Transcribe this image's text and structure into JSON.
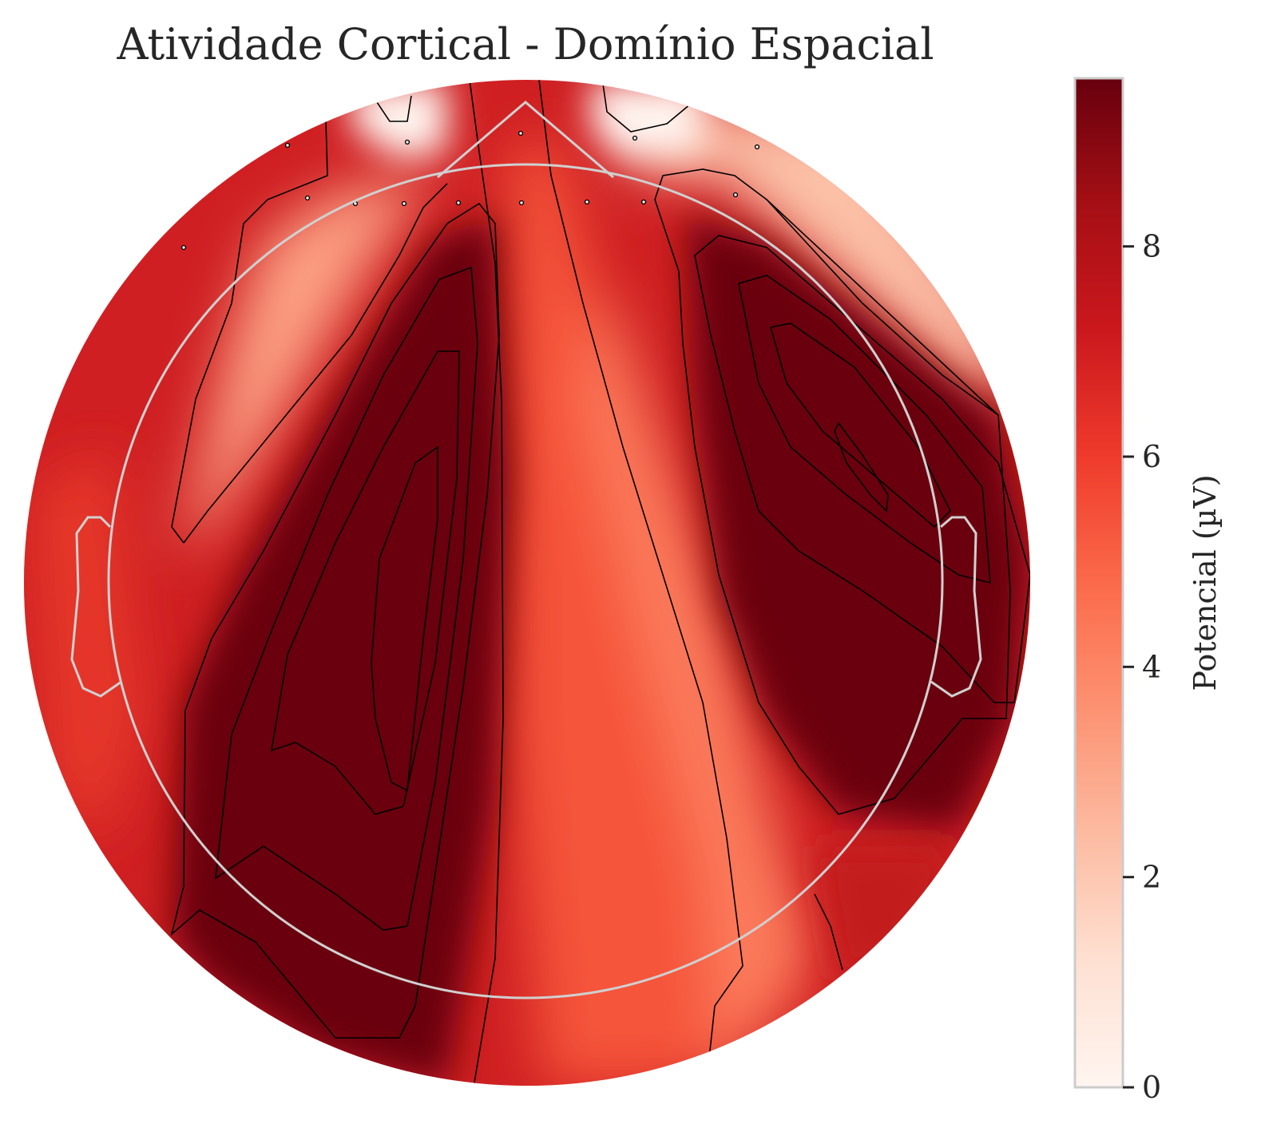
{
  "chart_data": {
    "type": "heatmap",
    "subtype": "eeg-topomap",
    "title": "Atividade Cortical - Domínio Espacial",
    "colormap": "Reds",
    "colors": {
      "cmap_low": "#fff5f0",
      "cmap_mid": "#fb6a4a",
      "cmap_high": "#67000d",
      "head_outline": "#cccccc",
      "contour": "#000000"
    },
    "colorbar": {
      "label": "Potencial (µV)",
      "range": [
        0,
        9.6
      ],
      "ticks": [
        0,
        2,
        4,
        6,
        8
      ],
      "tick_labels": [
        "0",
        "2",
        "4",
        "6",
        "8"
      ]
    },
    "grid": false,
    "contours": true,
    "head_outline": true
  }
}
